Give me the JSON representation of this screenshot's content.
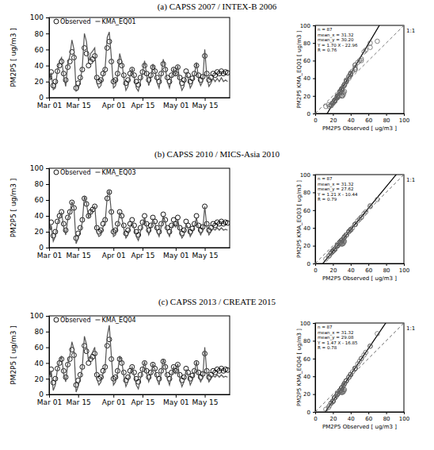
{
  "chart_data": [
    {
      "type": "line",
      "title": "(a) CAPSS 2007 / INTEX-B 2006",
      "ylabel": "PM2P5 [ ug/m3 ]",
      "x": [
        0,
        1,
        2,
        3,
        4,
        5,
        6,
        7,
        8,
        9,
        10,
        11,
        12,
        13,
        14,
        15,
        16,
        17,
        18,
        19,
        20,
        21,
        22,
        23,
        24,
        25,
        26,
        27,
        28,
        29,
        30,
        31,
        32,
        33,
        34,
        35,
        36,
        37,
        38,
        39,
        40,
        41,
        42,
        43,
        44,
        45,
        46,
        47,
        48,
        49,
        50,
        51,
        52,
        53,
        54,
        55,
        56,
        57,
        58,
        59,
        60,
        61,
        62,
        63,
        64,
        65,
        66,
        67,
        68,
        69,
        70,
        71,
        72,
        73,
        74,
        75,
        76,
        77,
        78,
        79,
        80,
        81,
        82,
        83,
        84,
        85,
        86
      ],
      "series": [
        {
          "name": "Observed",
          "color": "#000000",
          "marker": "circle",
          "line_style": "none",
          "values": [
            25,
            32,
            15,
            20,
            33,
            40,
            45,
            30,
            22,
            38,
            45,
            57,
            50,
            12,
            18,
            25,
            35,
            62,
            55,
            40,
            45,
            48,
            52,
            25,
            20,
            22,
            30,
            35,
            62,
            70,
            45,
            20,
            22,
            30,
            45,
            40,
            28,
            18,
            22,
            30,
            35,
            28,
            20,
            16,
            25,
            32,
            40,
            30,
            22,
            28,
            38,
            33,
            25,
            20,
            30,
            42,
            35,
            25,
            20,
            28,
            35,
            30,
            38,
            25,
            18,
            22,
            33,
            28,
            20,
            24,
            30,
            40,
            28,
            22,
            26,
            52,
            30,
            22,
            25,
            30,
            28,
            32,
            30,
            33,
            30,
            32,
            31
          ]
        },
        {
          "name": "KMA_EQ01",
          "color": "#555555",
          "marker": "none",
          "line_style": "solid",
          "values": [
            19,
            31,
            10,
            12,
            33,
            45,
            50,
            27,
            14,
            42,
            52,
            72,
            60,
            8,
            10,
            20,
            38,
            80,
            70,
            45,
            55,
            58,
            62,
            18,
            12,
            15,
            28,
            37,
            75,
            82,
            50,
            12,
            15,
            27,
            55,
            45,
            25,
            9,
            14,
            27,
            36,
            25,
            12,
            8,
            20,
            31,
            46,
            28,
            15,
            24,
            42,
            33,
            19,
            12,
            28,
            48,
            37,
            20,
            12,
            25,
            36,
            28,
            40,
            19,
            9,
            14,
            32,
            24,
            12,
            17,
            28,
            44,
            24,
            15,
            20,
            60,
            26,
            14,
            18,
            24,
            20,
            24,
            20,
            25,
            20,
            22,
            20
          ]
        }
      ],
      "xlim": [
        0,
        87
      ],
      "xticks": [
        {
          "value": 0,
          "label": "Mar 01"
        },
        {
          "value": 14,
          "label": "Mar 15"
        },
        {
          "value": 31,
          "label": "Apr 01"
        },
        {
          "value": 45,
          "label": "Apr 15"
        },
        {
          "value": 61,
          "label": "May 01"
        },
        {
          "value": 75,
          "label": "May 15"
        }
      ],
      "ylim": [
        0,
        100
      ],
      "yticks": [
        0,
        20,
        40,
        60,
        80,
        100
      ],
      "legend": "upper left"
    },
    {
      "type": "scatter",
      "xlabel": "PM2P5 Observed [ ug/m3 ]",
      "ylabel": "PM2P5 KMA_EQ01 [ ug/m3 ]",
      "color": "#666666",
      "marker": "circle",
      "xlim": [
        0,
        100
      ],
      "xticks": [
        0,
        20,
        40,
        60,
        80,
        100
      ],
      "ylim": [
        0,
        100
      ],
      "yticks": [
        0,
        20,
        40,
        60,
        80,
        100
      ],
      "annotations": [
        "n = 87",
        "mean_x = 31.32",
        "mean_y = 30.20",
        "Y = 1.70 X - 22.96",
        "R = 0.76"
      ],
      "fit": {
        "slope": 1.7,
        "intercept": -22.96
      },
      "identity_label": "1:1"
    },
    {
      "type": "line",
      "title": "(b) CAPSS 2010 / MICS-Asia 2010",
      "ylabel": "PM2P5 [ ug/m3 ]",
      "x": [
        0,
        1,
        2,
        3,
        4,
        5,
        6,
        7,
        8,
        9,
        10,
        11,
        12,
        13,
        14,
        15,
        16,
        17,
        18,
        19,
        20,
        21,
        22,
        23,
        24,
        25,
        26,
        27,
        28,
        29,
        30,
        31,
        32,
        33,
        34,
        35,
        36,
        37,
        38,
        39,
        40,
        41,
        42,
        43,
        44,
        45,
        46,
        47,
        48,
        49,
        50,
        51,
        52,
        53,
        54,
        55,
        56,
        57,
        58,
        59,
        60,
        61,
        62,
        63,
        64,
        65,
        66,
        67,
        68,
        69,
        70,
        71,
        72,
        73,
        74,
        75,
        76,
        77,
        78,
        79,
        80,
        81,
        82,
        83,
        84,
        85,
        86
      ],
      "series": [
        {
          "name": "Observed",
          "color": "#000000",
          "marker": "circle",
          "line_style": "none",
          "values": [
            25,
            32,
            15,
            20,
            33,
            40,
            45,
            30,
            22,
            38,
            45,
            57,
            50,
            12,
            18,
            25,
            35,
            62,
            55,
            40,
            45,
            48,
            52,
            25,
            20,
            22,
            30,
            35,
            62,
            70,
            45,
            20,
            22,
            30,
            45,
            40,
            28,
            18,
            22,
            30,
            35,
            28,
            20,
            16,
            25,
            32,
            40,
            30,
            22,
            28,
            38,
            33,
            25,
            20,
            30,
            42,
            35,
            25,
            20,
            28,
            35,
            30,
            38,
            25,
            18,
            22,
            33,
            28,
            20,
            24,
            30,
            40,
            28,
            22,
            26,
            52,
            30,
            22,
            25,
            30,
            28,
            32,
            30,
            33,
            30,
            32,
            31
          ]
        },
        {
          "name": "KMA_EQ03",
          "color": "#555555",
          "marker": "none",
          "line_style": "solid",
          "values": [
            20,
            28,
            8,
            14,
            30,
            38,
            44,
            26,
            16,
            36,
            44,
            58,
            50,
            5,
            12,
            20,
            32,
            65,
            56,
            38,
            44,
            48,
            52,
            20,
            14,
            16,
            26,
            32,
            64,
            72,
            44,
            14,
            16,
            26,
            44,
            38,
            24,
            12,
            16,
            26,
            32,
            24,
            14,
            9,
            20,
            28,
            38,
            26,
            16,
            24,
            36,
            30,
            20,
            14,
            26,
            40,
            32,
            20,
            14,
            24,
            32,
            26,
            36,
            20,
            12,
            16,
            30,
            24,
            14,
            19,
            26,
            38,
            24,
            16,
            21,
            52,
            26,
            16,
            20,
            24,
            22,
            25,
            22,
            25,
            22,
            23,
            22
          ]
        }
      ],
      "xlim": [
        0,
        87
      ],
      "xticks": [
        {
          "value": 0,
          "label": "Mar 01"
        },
        {
          "value": 14,
          "label": "Mar 15"
        },
        {
          "value": 31,
          "label": "Apr 01"
        },
        {
          "value": 45,
          "label": "Apr 15"
        },
        {
          "value": 61,
          "label": "May 01"
        },
        {
          "value": 75,
          "label": "May 15"
        }
      ],
      "ylim": [
        0,
        100
      ],
      "yticks": [
        0,
        20,
        40,
        60,
        80,
        100
      ],
      "legend": "upper left"
    },
    {
      "type": "scatter",
      "xlabel": "PM2P5 Observed [ ug/m3 ]",
      "ylabel": "PM2P5 KMA_EQ03 [ ug/m3 ]",
      "color": "#666666",
      "marker": "circle",
      "xlim": [
        0,
        100
      ],
      "xticks": [
        0,
        20,
        40,
        60,
        80,
        100
      ],
      "ylim": [
        0,
        100
      ],
      "yticks": [
        0,
        20,
        40,
        60,
        80,
        100
      ],
      "annotations": [
        "n = 87",
        "mean_x = 31.32",
        "mean_y = 27.62",
        "Y = 1.21 X - 10.44",
        "R = 0.79"
      ],
      "fit": {
        "slope": 1.21,
        "intercept": -10.44
      },
      "identity_label": "1:1"
    },
    {
      "type": "line",
      "title": "(c) CAPSS 2013 / CREATE 2015",
      "ylabel": "PM2P5 [ ug/m3 ]",
      "x": [
        0,
        1,
        2,
        3,
        4,
        5,
        6,
        7,
        8,
        9,
        10,
        11,
        12,
        13,
        14,
        15,
        16,
        17,
        18,
        19,
        20,
        21,
        22,
        23,
        24,
        25,
        26,
        27,
        28,
        29,
        30,
        31,
        32,
        33,
        34,
        35,
        36,
        37,
        38,
        39,
        40,
        41,
        42,
        43,
        44,
        45,
        46,
        47,
        48,
        49,
        50,
        51,
        52,
        53,
        54,
        55,
        56,
        57,
        58,
        59,
        60,
        61,
        62,
        63,
        64,
        65,
        66,
        67,
        68,
        69,
        70,
        71,
        72,
        73,
        74,
        75,
        76,
        77,
        78,
        79,
        80,
        81,
        82,
        83,
        84,
        85,
        86
      ],
      "series": [
        {
          "name": "Observed",
          "color": "#000000",
          "marker": "circle",
          "line_style": "none",
          "values": [
            25,
            32,
            15,
            20,
            33,
            40,
            45,
            30,
            22,
            38,
            45,
            57,
            50,
            12,
            18,
            25,
            35,
            62,
            55,
            40,
            45,
            48,
            52,
            25,
            20,
            22,
            30,
            35,
            62,
            70,
            45,
            20,
            22,
            30,
            45,
            40,
            28,
            18,
            22,
            30,
            35,
            28,
            20,
            16,
            25,
            32,
            40,
            30,
            22,
            28,
            38,
            33,
            25,
            20,
            30,
            42,
            35,
            25,
            20,
            28,
            35,
            30,
            38,
            25,
            18,
            22,
            33,
            28,
            20,
            24,
            30,
            40,
            28,
            22,
            26,
            52,
            30,
            22,
            25,
            30,
            28,
            32,
            30,
            33,
            30,
            32,
            31
          ]
        },
        {
          "name": "KMA_EQ04",
          "color": "#555555",
          "marker": "none",
          "line_style": "solid",
          "values": [
            20,
            30,
            5,
            12,
            32,
            42,
            49,
            27,
            16,
            39,
            49,
            67,
            57,
            3,
            10,
            20,
            35,
            74,
            64,
            42,
            49,
            54,
            60,
            20,
            12,
            16,
            27,
            35,
            74,
            88,
            49,
            12,
            16,
            27,
            49,
            42,
            24,
            10,
            16,
            27,
            35,
            24,
            12,
            7,
            20,
            30,
            42,
            27,
            16,
            24,
            39,
            32,
            20,
            12,
            27,
            45,
            35,
            20,
            12,
            24,
            35,
            27,
            39,
            20,
            10,
            16,
            32,
            24,
            12,
            18,
            27,
            42,
            24,
            16,
            21,
            60,
            27,
            16,
            20,
            24,
            22,
            25,
            22,
            25,
            22,
            23,
            22
          ]
        }
      ],
      "xlim": [
        0,
        87
      ],
      "xticks": [
        {
          "value": 0,
          "label": "Mar 01"
        },
        {
          "value": 14,
          "label": "Mar 15"
        },
        {
          "value": 31,
          "label": "Apr 01"
        },
        {
          "value": 45,
          "label": "Apr 15"
        },
        {
          "value": 61,
          "label": "May 01"
        },
        {
          "value": 75,
          "label": "May 15"
        }
      ],
      "ylim": [
        0,
        100
      ],
      "yticks": [
        0,
        20,
        40,
        60,
        80,
        100
      ],
      "legend": "upper left"
    },
    {
      "type": "scatter",
      "xlabel": "PM2P5 Observed [ ug/m3 ]",
      "ylabel": "PM2P5 KMA_EQ04 [ ug/m3 ]",
      "color": "#666666",
      "marker": "circle",
      "xlim": [
        0,
        100
      ],
      "xticks": [
        0,
        20,
        40,
        60,
        80,
        100
      ],
      "ylim": [
        0,
        100
      ],
      "yticks": [
        0,
        20,
        40,
        60,
        80,
        100
      ],
      "annotations": [
        "n = 87",
        "mean_x = 31.32",
        "mean_y = 29.08",
        "Y = 1.47 X - 16.85",
        "R = 0.78"
      ],
      "fit": {
        "slope": 1.47,
        "intercept": -16.85
      },
      "identity_label": "1:1"
    }
  ]
}
